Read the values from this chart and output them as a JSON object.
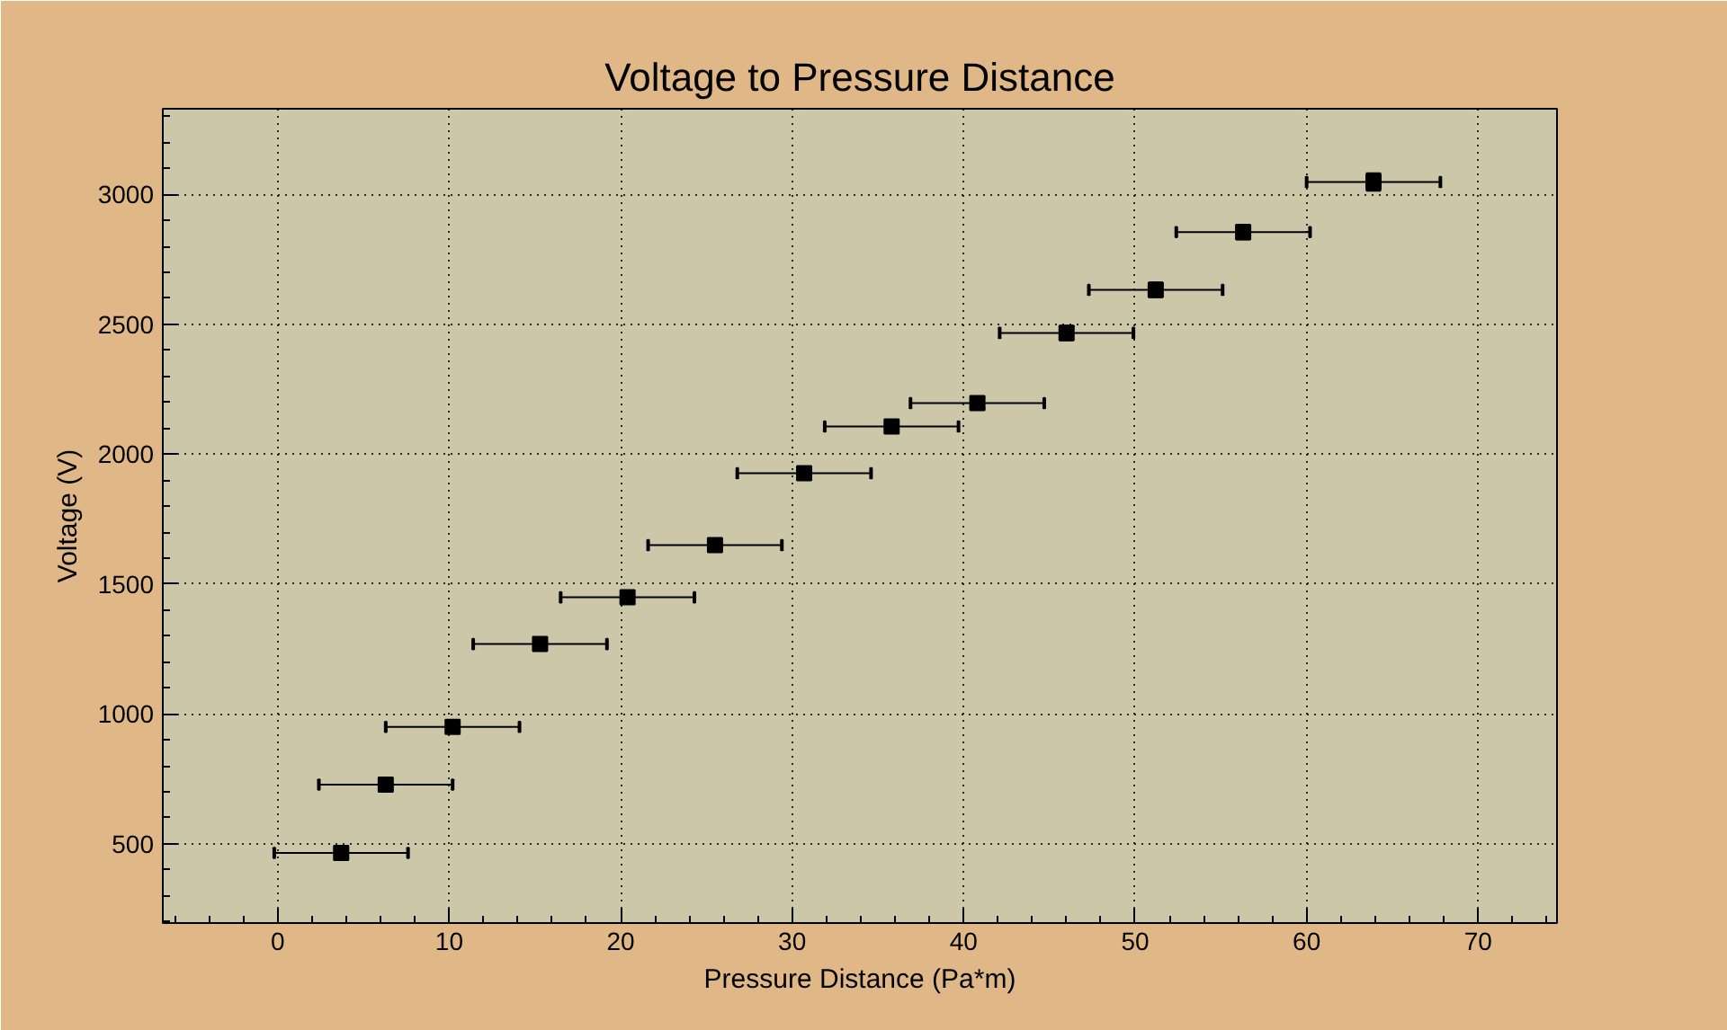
{
  "chart_data": {
    "type": "scatter",
    "title": "Voltage to Pressure Distance",
    "xlabel": "Pressure Distance (Pa*m)",
    "ylabel": "Voltage (V)",
    "x": [
      3.7,
      6.3,
      10.2,
      15.3,
      20.4,
      25.5,
      30.7,
      35.8,
      40.8,
      46.0,
      51.2,
      56.3,
      63.9
    ],
    "values": [
      465,
      728,
      950,
      1269,
      1449,
      1650,
      1927,
      2107,
      2197,
      2467,
      2633,
      2855,
      3048
    ],
    "xerrors": [
      3.9,
      3.9,
      3.9,
      3.9,
      3.9,
      3.9,
      3.9,
      3.9,
      3.9,
      3.9,
      3.9,
      3.9,
      3.9
    ],
    "errors": [
      null,
      null,
      null,
      null,
      null,
      null,
      null,
      null,
      20,
      25,
      25,
      25,
      30
    ],
    "color": "#000000",
    "marker": "square",
    "xlim": [
      -6.7,
      74.6
    ],
    "ylim": [
      195,
      3330
    ],
    "xticks": [
      0,
      10,
      20,
      30,
      40,
      50,
      60,
      70
    ],
    "yticks": [
      500,
      1000,
      1500,
      2000,
      2500,
      3000
    ],
    "grid": true
  }
}
